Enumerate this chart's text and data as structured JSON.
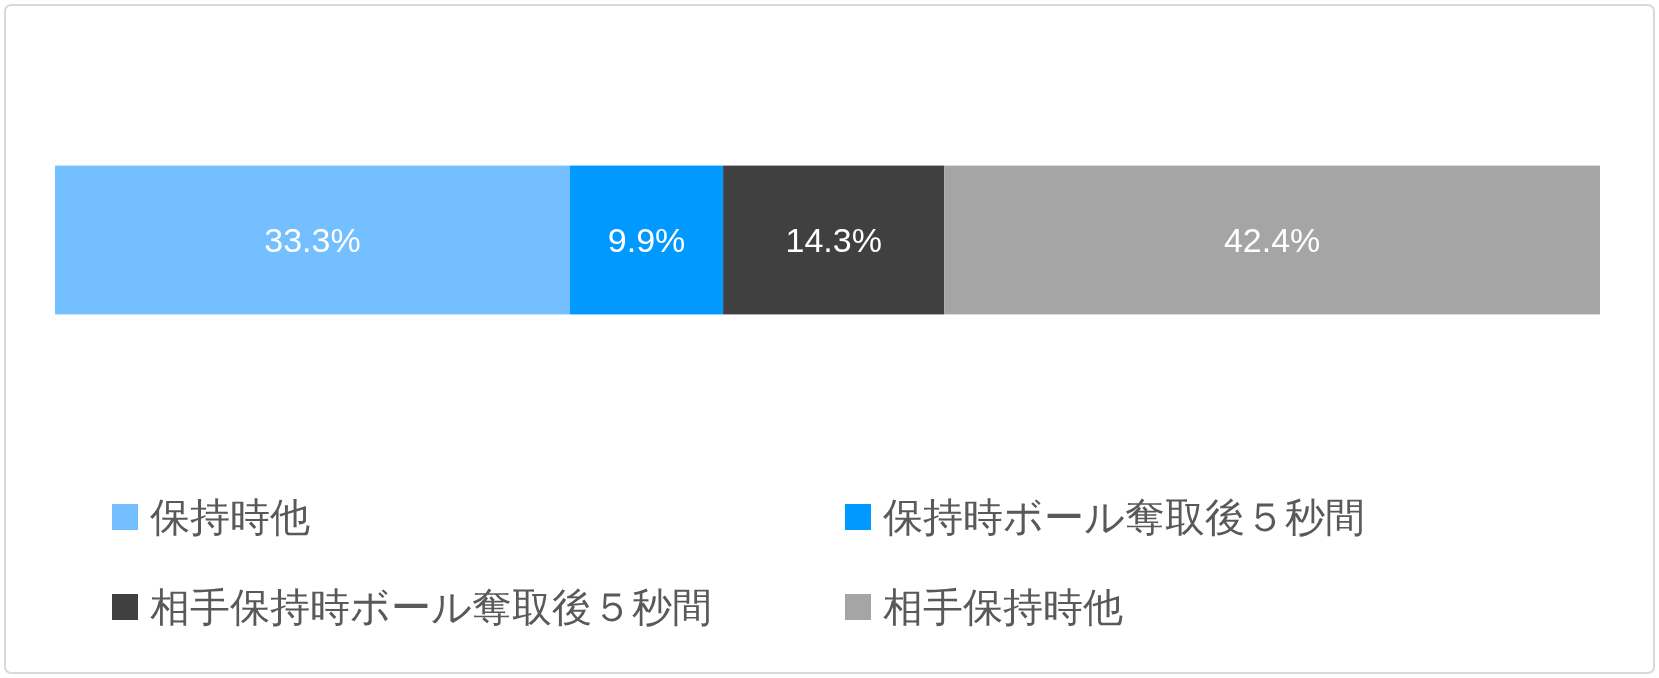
{
  "chart_data": {
    "type": "bar",
    "orientation": "horizontal",
    "stacked": true,
    "categories": [
      null
    ],
    "legend": "bottom",
    "series": [
      {
        "name": "保持時他",
        "color": "#74bfff",
        "values": [
          33.3
        ],
        "value_labels": [
          "33.3%"
        ]
      },
      {
        "name": "保持時ボール奪取後５秒間",
        "color": "#0099ff",
        "values": [
          9.9
        ],
        "value_labels": [
          "9.9%"
        ]
      },
      {
        "name": "相手保持時ボール奪取後５秒間",
        "color": "#404040",
        "values": [
          14.3
        ],
        "value_labels": [
          "14.3%"
        ]
      },
      {
        "name": "相手保持時他",
        "color": "#a5a5a5",
        "values": [
          42.4
        ],
        "value_labels": [
          "42.4%"
        ]
      }
    ]
  }
}
